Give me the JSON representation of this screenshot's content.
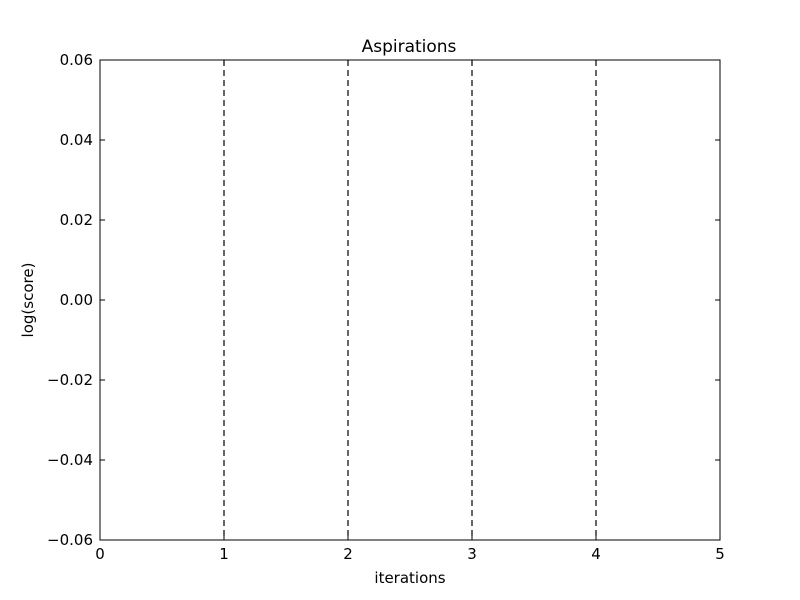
{
  "chart_data": {
    "type": "line",
    "title": "Aspirations",
    "xlabel": "iterations",
    "ylabel": "log(score)",
    "xlim": [
      0,
      5
    ],
    "ylim": [
      -0.06,
      0.06
    ],
    "x_ticks": [
      0,
      1,
      2,
      3,
      4,
      5
    ],
    "x_tick_labels": [
      "0",
      "1",
      "2",
      "3",
      "4",
      "5"
    ],
    "y_ticks": [
      0.06,
      0.04,
      0.02,
      0.0,
      -0.02,
      -0.04,
      -0.06
    ],
    "y_tick_labels": [
      "0.06",
      "0.04",
      "0.02",
      "0.00",
      "−0.02",
      "−0.04",
      "−0.06"
    ],
    "vertical_dashed_lines": [
      1,
      2,
      3,
      4
    ],
    "series": [],
    "grid": false,
    "legend": "none"
  }
}
